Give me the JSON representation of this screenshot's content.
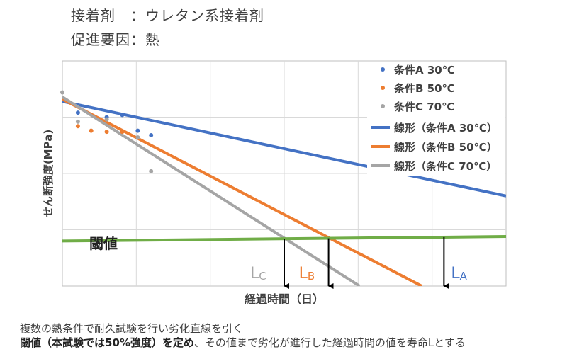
{
  "header": {
    "line1": "接着剤　：ウレタン系接着剤",
    "line2": "促進要因：熱"
  },
  "caption": {
    "line1": "複数の熱条件で耐久試験を行い劣化直線を引く",
    "line2_bold": "閾値（本試験では50%強度）を定め",
    "line2_rest": "、その値まで劣化が進行した経過時間の値を寿命Lとする"
  },
  "chart_data": {
    "type": "scatter",
    "xlabel": "経過時間（日）",
    "ylabel": "せん断強度(MPa)",
    "xlim": [
      0,
      100
    ],
    "ylim": [
      0,
      100
    ],
    "grid": true,
    "legend_position": "top-right",
    "threshold": {
      "label": "閾値",
      "y": [
        20,
        22
      ],
      "color": "#70ad47"
    },
    "series": [
      {
        "name": "条件A 30℃",
        "color": "#4472c4",
        "points": [
          [
            3.5,
            77
          ],
          [
            10,
            75
          ],
          [
            13.5,
            76
          ],
          [
            17,
            69
          ],
          [
            20,
            67
          ]
        ]
      },
      {
        "name": "条件B 50℃",
        "color": "#ed7d31",
        "points": [
          [
            3.5,
            71
          ],
          [
            6.5,
            69
          ],
          [
            10,
            68.5
          ],
          [
            13.5,
            68.5
          ]
        ]
      },
      {
        "name": "条件C 70℃",
        "color": "#a5a5a5",
        "points": [
          [
            0,
            86
          ],
          [
            3.5,
            73
          ],
          [
            10,
            74
          ],
          [
            17,
            66
          ],
          [
            20,
            51
          ]
        ]
      }
    ],
    "trendlines": [
      {
        "name": "線形（条件A 30℃）",
        "color": "#4472c4",
        "from": [
          0,
          82
        ],
        "to": [
          100,
          40
        ],
        "marker": "LA",
        "marker_sub": "A",
        "life_x": 86
      },
      {
        "name": "線形（条件B 50℃）",
        "color": "#ed7d31",
        "from": [
          0,
          83
        ],
        "to": [
          81,
          0
        ],
        "marker": "LB",
        "marker_sub": "B",
        "life_x": 60
      },
      {
        "name": "線形（条件C 70℃）",
        "color": "#a5a5a5",
        "from": [
          0,
          84
        ],
        "to": [
          67,
          0
        ],
        "marker": "LC",
        "marker_sub": "C",
        "life_x": 50
      }
    ]
  }
}
